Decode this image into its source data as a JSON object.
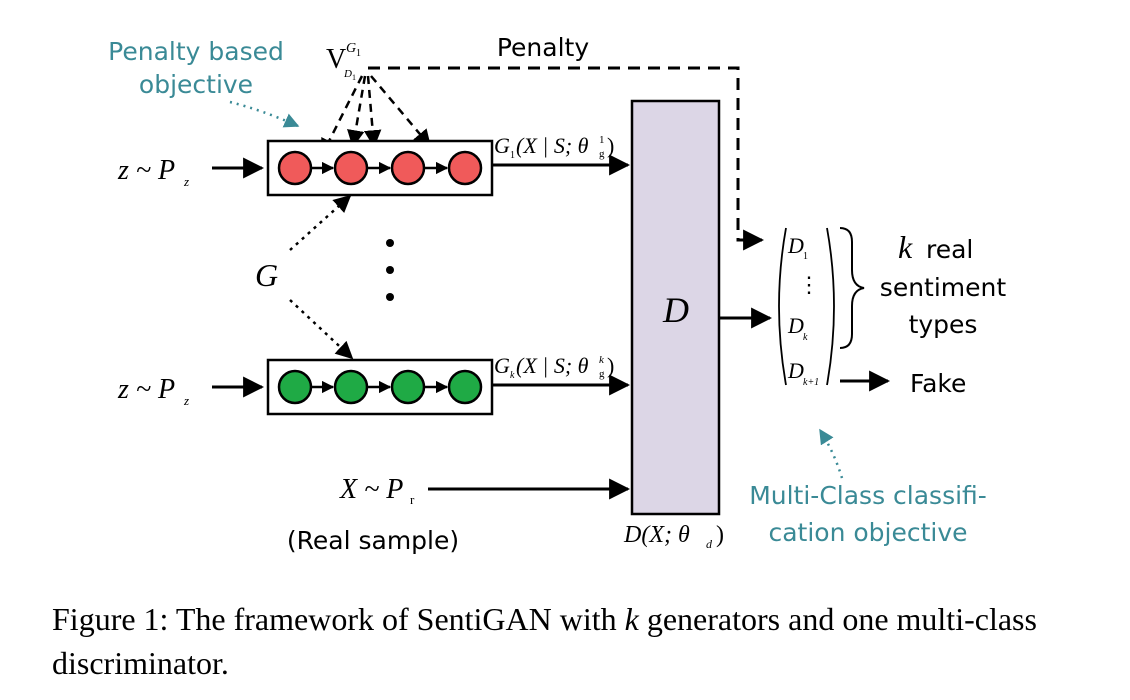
{
  "labels": {
    "penalty_obj_line1": "Penalty based",
    "penalty_obj_line2": "objective",
    "penalty": "Penalty",
    "v_base": "V",
    "v_sup": "G",
    "v_sup_sub": "1",
    "v_sub": "D",
    "v_sub_sub": "1",
    "z_input_1": "z ~ P",
    "z_input_1_sub": "z",
    "z_input_2": "z ~ P",
    "z_input_2_sub": "z",
    "generator_group": "G",
    "g1_output": "G",
    "g1_output_sub": "1",
    "g1_output_args": "(X | S; θ",
    "g1_output_theta_sup": "1",
    "g1_output_theta_sub": "g",
    "g1_output_close": ")",
    "gk_output": "G",
    "gk_output_sub": "k",
    "gk_output_args": "(X | S; θ",
    "gk_output_theta_sup": "k",
    "gk_output_theta_sub": "g",
    "gk_output_close": ")",
    "ellipsis_vertical": "⋮",
    "real_input": "X ~ P",
    "real_input_sub": "r",
    "real_sample": "(Real sample)",
    "discriminator": "D",
    "disc_caption": "D(X; θ",
    "disc_caption_sub": "d",
    "disc_caption_close": ")",
    "out_d1": "D",
    "out_d1_sub": "1",
    "out_vdots": "⋮",
    "out_dk": "D",
    "out_dk_sub": "k",
    "out_dk1": "D",
    "out_dk1_sub": "k+1",
    "k_letter": "k",
    "k_real": "real",
    "sentiment": "sentiment",
    "types": "types",
    "fake": "Fake",
    "multiclass_line1": "Multi-Class classifi-",
    "multiclass_line2": "cation objective"
  },
  "caption": {
    "prefix": "Figure 1: The framework of SentiGAN with ",
    "k": "k",
    "suffix": " generators and one multi-class discriminator."
  },
  "colors": {
    "generator_top_node": "#f05a5a",
    "generator_bottom_node": "#1faa45",
    "discriminator_fill": "#dcd6e6",
    "annotation": "#3a8a96"
  }
}
